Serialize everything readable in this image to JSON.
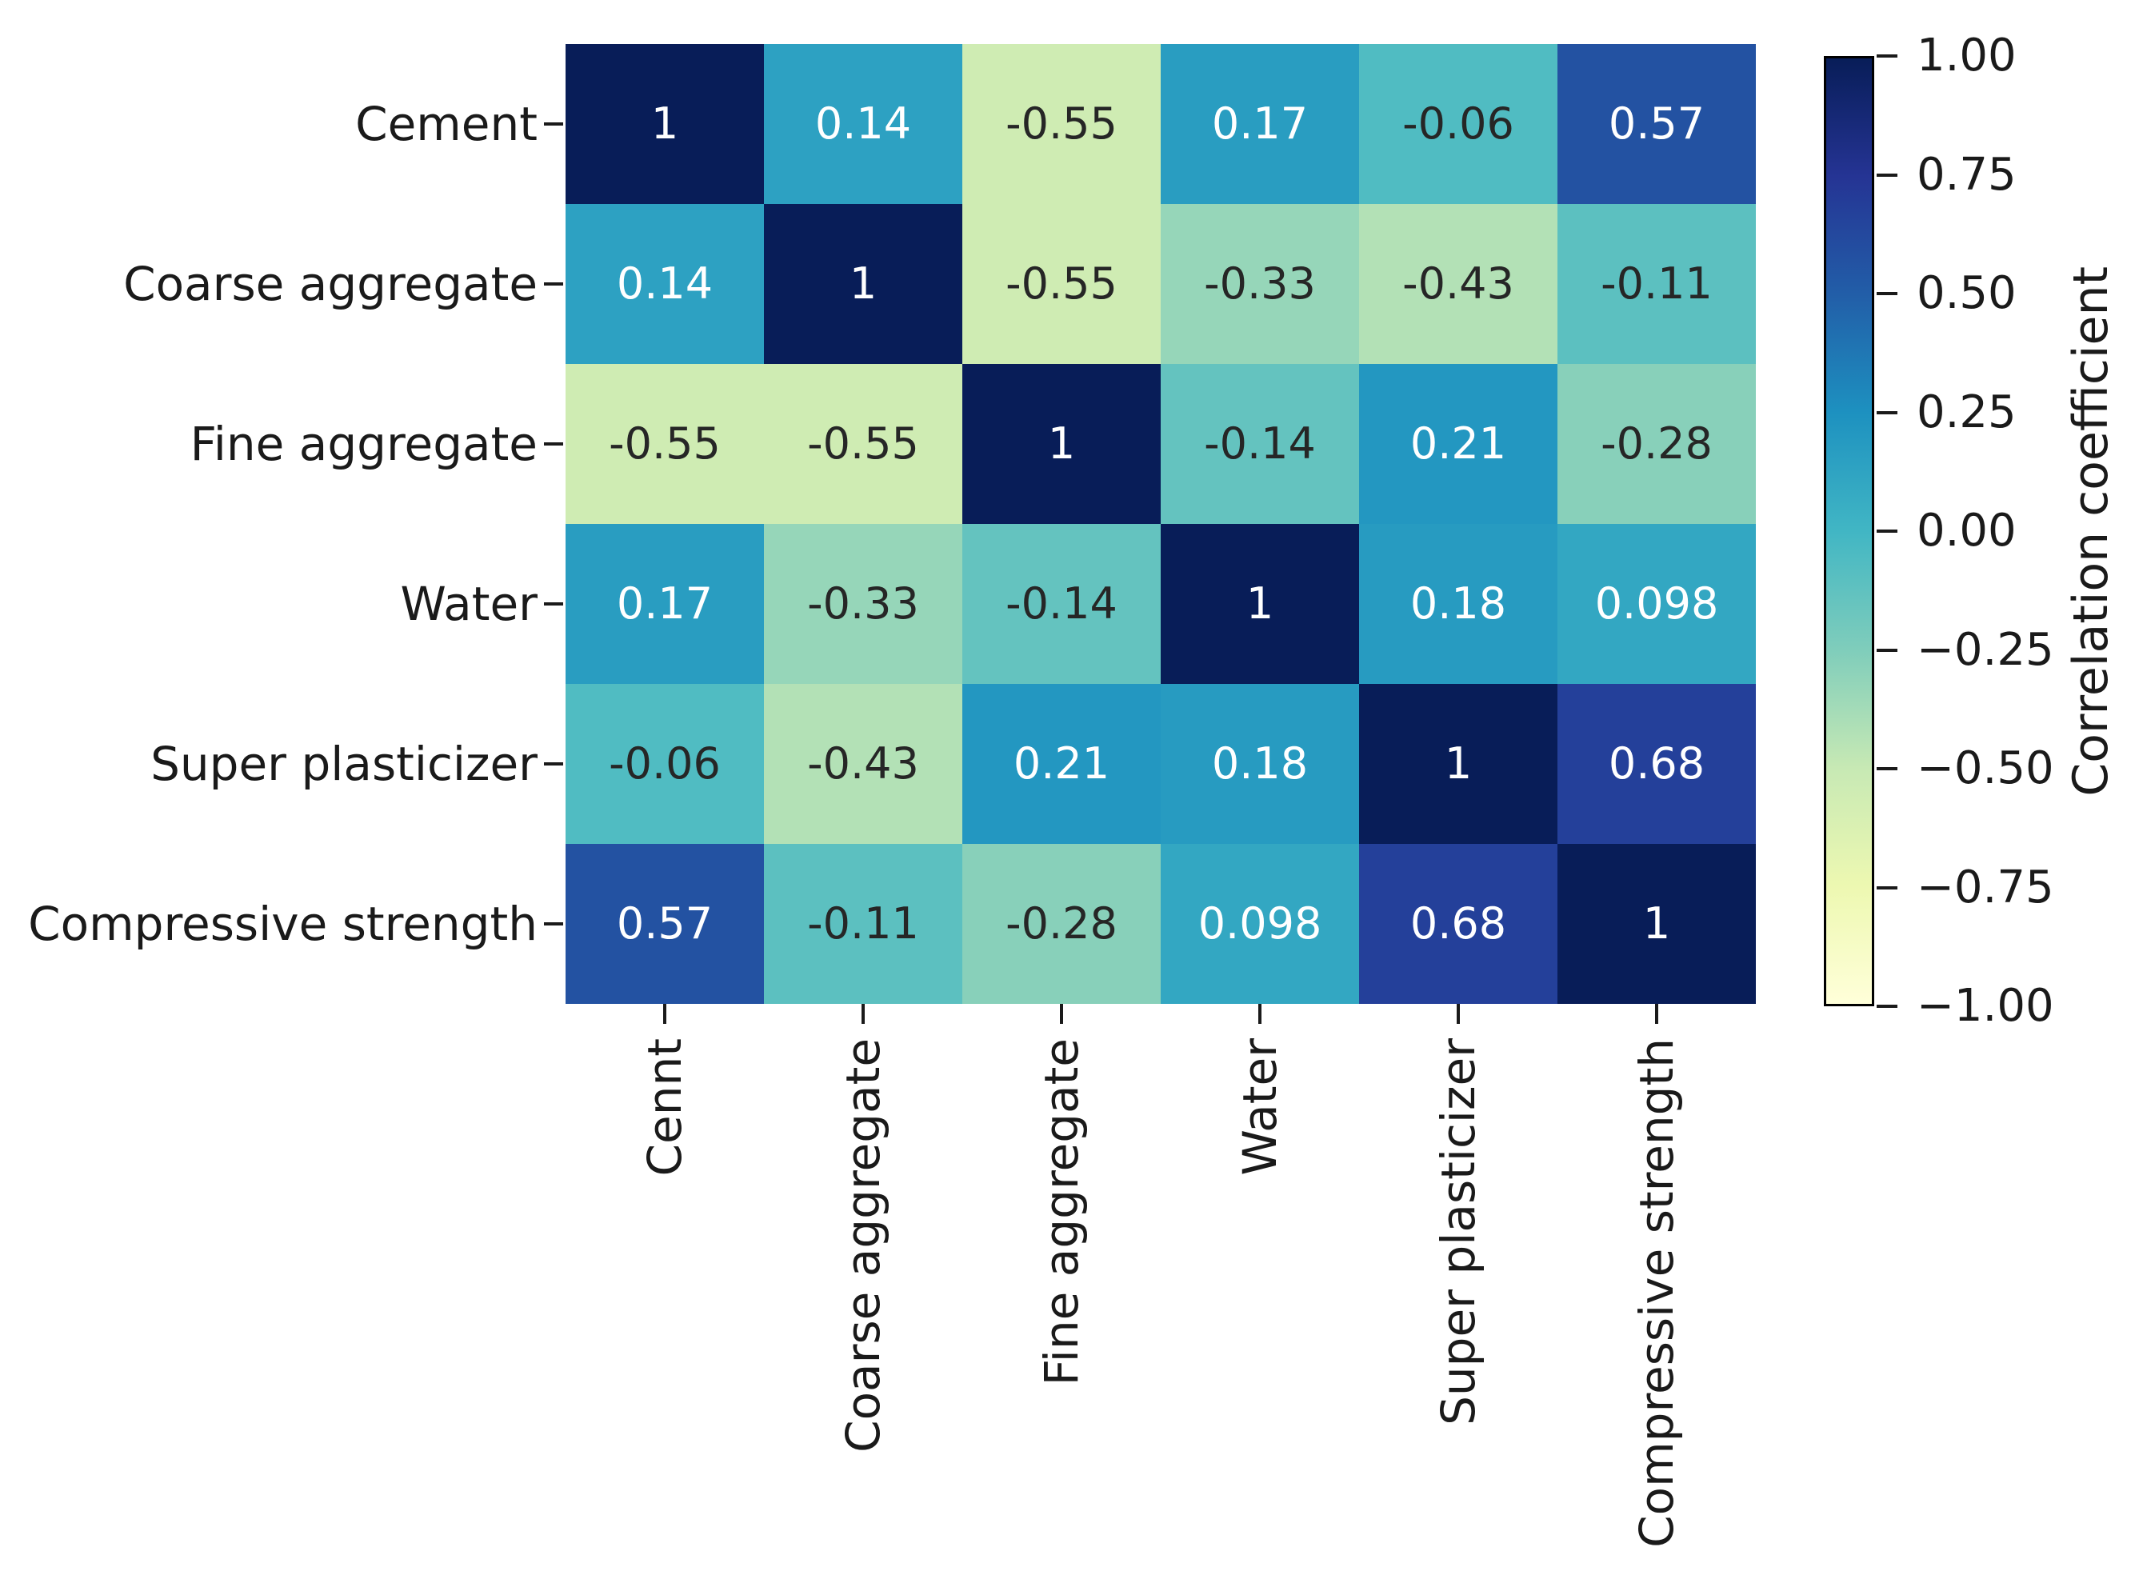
{
  "chart_data": {
    "type": "heatmap",
    "title": "",
    "row_labels": [
      "Cement",
      "Coarse aggregate",
      "Fine aggregate",
      "Water",
      "Super plasticizer",
      "Compressive strength"
    ],
    "col_labels": [
      "Cennt",
      "Coarse aggregate",
      "Fine aggregate",
      "Water",
      "Super plasticizer",
      "Compressive strength"
    ],
    "values": [
      [
        1,
        0.14,
        -0.55,
        0.17,
        -0.06,
        0.57
      ],
      [
        0.14,
        1,
        -0.55,
        -0.33,
        -0.43,
        -0.11
      ],
      [
        -0.55,
        -0.55,
        1,
        -0.14,
        0.21,
        -0.28
      ],
      [
        0.17,
        -0.33,
        -0.14,
        1,
        0.18,
        0.098
      ],
      [
        -0.06,
        -0.43,
        0.21,
        0.18,
        1,
        0.68
      ],
      [
        0.57,
        -0.11,
        -0.28,
        0.098,
        0.68,
        1
      ]
    ],
    "annotations": [
      [
        "1",
        "0.14",
        "-0.55",
        "0.17",
        "-0.06",
        "0.57"
      ],
      [
        "0.14",
        "1",
        "-0.55",
        "-0.33",
        "-0.43",
        "-0.11"
      ],
      [
        "-0.55",
        "-0.55",
        "1",
        "-0.14",
        "0.21",
        "-0.28"
      ],
      [
        "0.17",
        "-0.33",
        "-0.14",
        "1",
        "0.18",
        "0.098"
      ],
      [
        "-0.06",
        "-0.43",
        "0.21",
        "0.18",
        "1",
        "0.68"
      ],
      [
        "0.57",
        "-0.11",
        "-0.28",
        "0.098",
        "0.68",
        "1"
      ]
    ],
    "colorbar": {
      "label": "Correlation coefficient",
      "tick_labels": [
        "1.00",
        "0.75",
        "0.50",
        "0.25",
        "0.00",
        "−0.25",
        "−0.50",
        "−0.75",
        "−1.00"
      ],
      "vmin": -1,
      "vmax": 1,
      "colormap": "YlGnBu",
      "colormap_anchors": [
        "#ffffd9",
        "#edf8b1",
        "#c7e9b4",
        "#7fcdbb",
        "#41b6c4",
        "#1d91c0",
        "#225ea8",
        "#253494",
        "#081d58"
      ]
    },
    "annotation_text_colors": {
      "light": "#ffffff",
      "dark": "#262626"
    },
    "layout": {
      "grid_lines": false,
      "x_tick_rotation": 90,
      "legend_position": "right-colorbar",
      "background": "#ffffff"
    }
  }
}
